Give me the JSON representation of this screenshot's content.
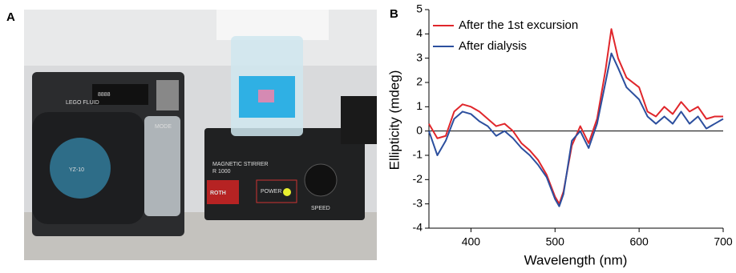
{
  "panel_labels": [
    "A",
    "B"
  ],
  "photo": {
    "labels": [
      "LEGO FLUID",
      "8888",
      "MODE",
      "MAGNETIC STIRRER",
      "R 1000",
      "ROTH",
      "POWER",
      "SPEED",
      "YZ-10"
    ]
  },
  "chart_data": {
    "type": "line",
    "xlabel": "Wavelength (nm)",
    "ylabel": "Ellipticity (mdeg)",
    "x": [
      350,
      360,
      370,
      380,
      390,
      400,
      410,
      420,
      430,
      440,
      450,
      460,
      470,
      480,
      490,
      500,
      505,
      510,
      520,
      530,
      540,
      550,
      560,
      567,
      575,
      585,
      600,
      610,
      620,
      630,
      640,
      650,
      660,
      670,
      680,
      690,
      700
    ],
    "series": [
      {
        "name": "After the 1st excursion",
        "color": "#e0262b",
        "values": [
          0.3,
          -0.3,
          -0.2,
          0.8,
          1.1,
          1.0,
          0.8,
          0.5,
          0.2,
          0.3,
          0.0,
          -0.5,
          -0.8,
          -1.2,
          -1.8,
          -2.7,
          -3.0,
          -2.5,
          -0.6,
          0.2,
          -0.5,
          0.5,
          2.5,
          4.2,
          3.0,
          2.2,
          1.8,
          0.8,
          0.6,
          1.0,
          0.7,
          1.2,
          0.8,
          1.0,
          0.5,
          0.6,
          0.6
        ]
      },
      {
        "name": "After dialysis",
        "color": "#2c4f9e",
        "values": [
          0.0,
          -1.0,
          -0.4,
          0.5,
          0.8,
          0.7,
          0.4,
          0.2,
          -0.2,
          0.0,
          -0.3,
          -0.7,
          -1.0,
          -1.4,
          -1.9,
          -2.8,
          -3.1,
          -2.6,
          -0.4,
          0.0,
          -0.7,
          0.3,
          2.0,
          3.2,
          2.6,
          1.8,
          1.3,
          0.6,
          0.3,
          0.6,
          0.3,
          0.8,
          0.3,
          0.6,
          0.1,
          0.3,
          0.5
        ]
      }
    ],
    "xlim": [
      350,
      700
    ],
    "xticks": [
      400,
      500,
      600,
      700
    ],
    "ylim": [
      -4,
      5
    ],
    "yticks": [
      -4,
      -3,
      -2,
      -1,
      0,
      1,
      2,
      3,
      4,
      5
    ],
    "legend": "upper left"
  }
}
